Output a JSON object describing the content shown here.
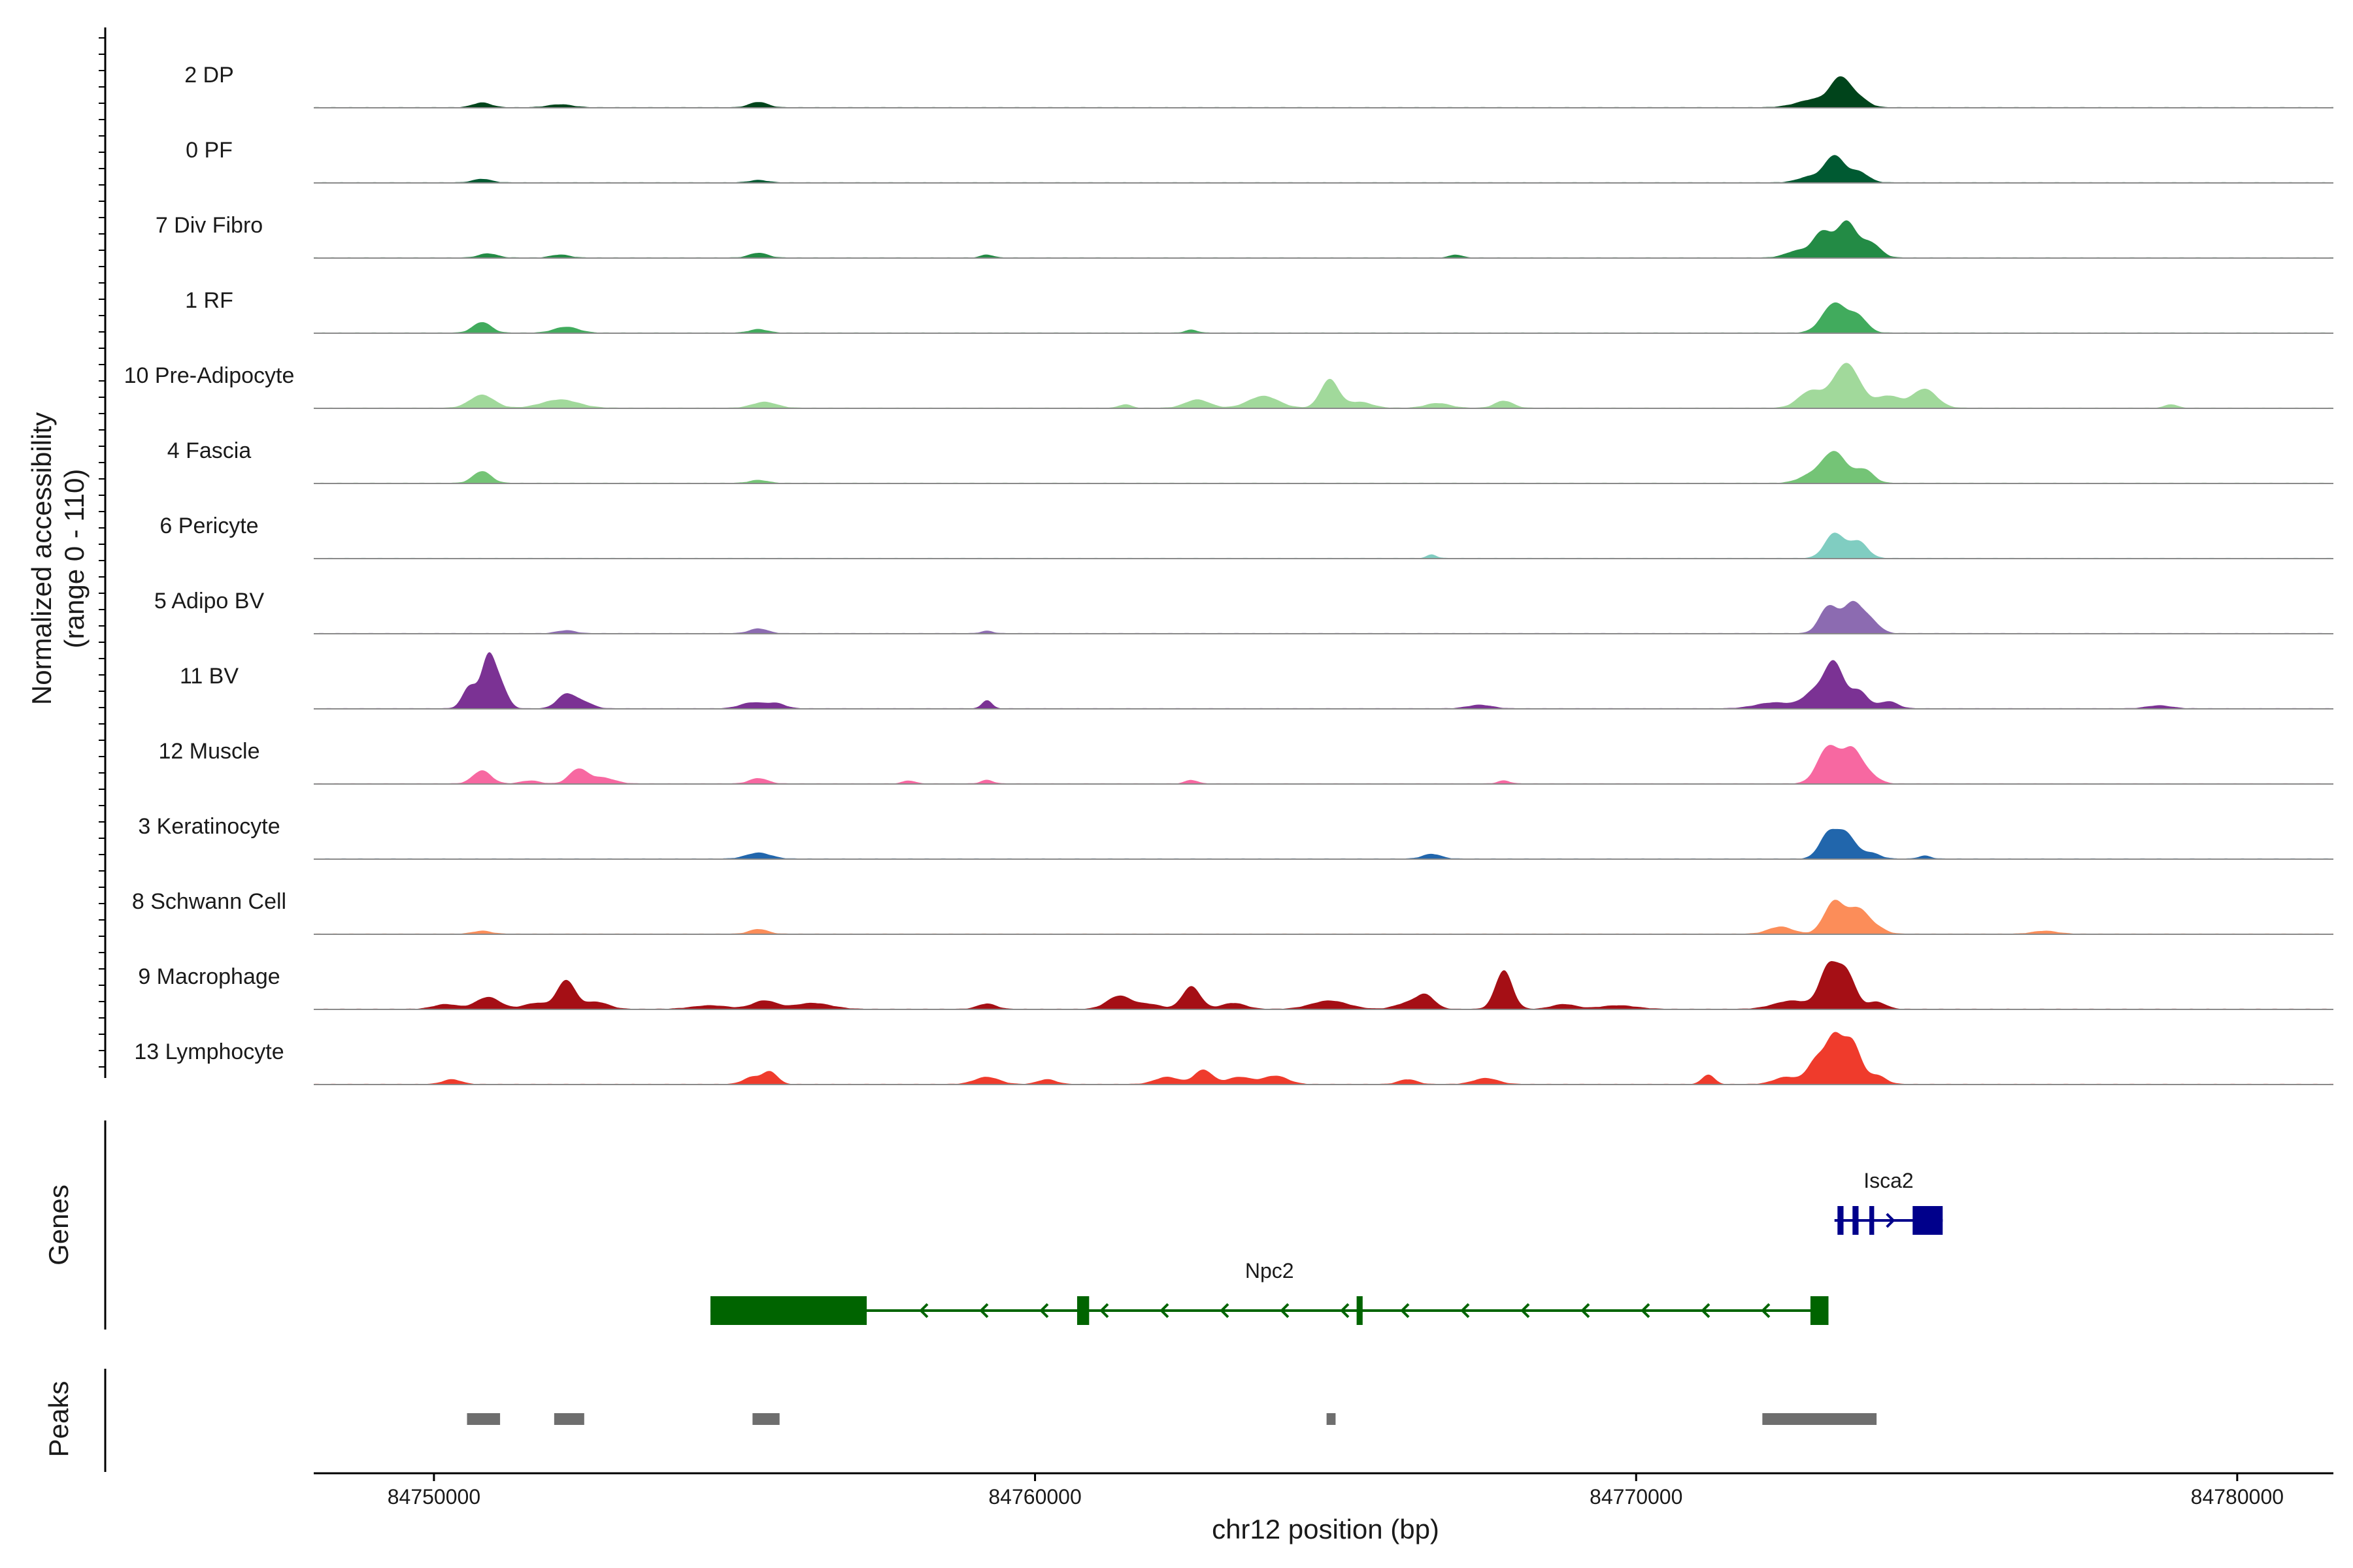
{
  "chart_data": {
    "type": "area",
    "chromosome": "chr12",
    "xlabel": "chr12 position (bp)",
    "xlim": [
      84748000,
      84781600
    ],
    "x_ticks": [
      84750000,
      84760000,
      84770000,
      84780000
    ],
    "x_tick_labels": [
      "84750000",
      "84760000",
      "84770000",
      "84780000"
    ],
    "ylabel": "Normalized accessibility",
    "ylabel_range": "(range 0 - 110)",
    "ylim": [
      0,
      110
    ],
    "panel_labels": {
      "genes": "Genes",
      "peaks": "Peaks"
    },
    "series": [
      {
        "name": "2 DP",
        "color": "#00441b",
        "peaks": [
          [
            84750800,
            8,
            150
          ],
          [
            84752100,
            5,
            200
          ],
          [
            84755400,
            9,
            150
          ],
          [
            84773000,
            14,
            300
          ],
          [
            84773400,
            44,
            160
          ],
          [
            84773700,
            15,
            160
          ]
        ]
      },
      {
        "name": "0 PF",
        "color": "#005a32",
        "peaks": [
          [
            84750800,
            6,
            150
          ],
          [
            84755400,
            4,
            150
          ],
          [
            84773300,
            44,
            160
          ],
          [
            84773700,
            18,
            160
          ],
          [
            84772900,
            10,
            200
          ]
        ]
      },
      {
        "name": "7 Div Fibro",
        "color": "#238b45",
        "peaks": [
          [
            84750900,
            7,
            150
          ],
          [
            84752100,
            5,
            150
          ],
          [
            84755400,
            8,
            150
          ],
          [
            84759200,
            5,
            100
          ],
          [
            84767000,
            5,
            100
          ],
          [
            84772700,
            12,
            200
          ],
          [
            84773100,
            42,
            150
          ],
          [
            84773500,
            60,
            160
          ],
          [
            84773900,
            25,
            160
          ]
        ]
      },
      {
        "name": "1 RF",
        "color": "#41ab5d",
        "peaks": [
          [
            84750800,
            18,
            150
          ],
          [
            84752200,
            10,
            200
          ],
          [
            84755400,
            6,
            150
          ],
          [
            84762600,
            5,
            100
          ],
          [
            84773300,
            50,
            200
          ],
          [
            84773700,
            25,
            150
          ]
        ]
      },
      {
        "name": "10 Pre-Adipocyte",
        "color": "#a1d99b",
        "peaks": [
          [
            84750800,
            22,
            200
          ],
          [
            84752100,
            14,
            300
          ],
          [
            84755500,
            10,
            200
          ],
          [
            84761500,
            6,
            100
          ],
          [
            84762700,
            14,
            200
          ],
          [
            84763800,
            20,
            250
          ],
          [
            84764900,
            48,
            150
          ],
          [
            84765400,
            10,
            200
          ],
          [
            84766700,
            8,
            200
          ],
          [
            84767800,
            12,
            150
          ],
          [
            84772900,
            28,
            200
          ],
          [
            84773500,
            75,
            220
          ],
          [
            84774200,
            20,
            200
          ],
          [
            84774800,
            32,
            200
          ],
          [
            84778900,
            6,
            100
          ]
        ]
      },
      {
        "name": "4 Fascia",
        "color": "#74c476",
        "peaks": [
          [
            84750800,
            20,
            150
          ],
          [
            84755400,
            5,
            150
          ],
          [
            84772900,
            12,
            200
          ],
          [
            84773300,
            52,
            200
          ],
          [
            84773800,
            22,
            150
          ]
        ]
      },
      {
        "name": "6 Pericyte",
        "color": "#80cdc1",
        "peaks": [
          [
            84766600,
            6,
            80
          ],
          [
            84773300,
            42,
            160
          ],
          [
            84773700,
            28,
            150
          ]
        ]
      },
      {
        "name": "5 Adipo BV",
        "color": "#8c6bb1",
        "peaks": [
          [
            84752200,
            5,
            150
          ],
          [
            84755400,
            8,
            150
          ],
          [
            84759200,
            4,
            100
          ],
          [
            84773200,
            45,
            150
          ],
          [
            84773600,
            50,
            160
          ],
          [
            84773900,
            20,
            150
          ]
        ]
      },
      {
        "name": "11 BV",
        "color": "#7b3294",
        "peaks": [
          [
            84750600,
            38,
            120
          ],
          [
            84750900,
            82,
            110
          ],
          [
            84751100,
            40,
            120
          ],
          [
            84752200,
            24,
            150
          ],
          [
            84752500,
            10,
            150
          ],
          [
            84755300,
            10,
            200
          ],
          [
            84755700,
            8,
            150
          ],
          [
            84759200,
            14,
            80
          ],
          [
            84767400,
            6,
            200
          ],
          [
            84772300,
            10,
            300
          ],
          [
            84773000,
            30,
            200
          ],
          [
            84773300,
            70,
            150
          ],
          [
            84773700,
            30,
            150
          ],
          [
            84774200,
            12,
            150
          ],
          [
            84778700,
            5,
            200
          ]
        ]
      },
      {
        "name": "12 Muscle",
        "color": "#f768a1",
        "peaks": [
          [
            84750800,
            22,
            150
          ],
          [
            84751600,
            5,
            150
          ],
          [
            84752400,
            24,
            150
          ],
          [
            84752800,
            10,
            200
          ],
          [
            84755400,
            9,
            150
          ],
          [
            84757900,
            5,
            100
          ],
          [
            84759200,
            6,
            100
          ],
          [
            84762600,
            6,
            100
          ],
          [
            84767800,
            5,
            100
          ],
          [
            84773200,
            62,
            180
          ],
          [
            84773600,
            55,
            160
          ],
          [
            84773900,
            12,
            150
          ]
        ]
      },
      {
        "name": "3 Keratinocyte",
        "color": "#2166ac",
        "peaks": [
          [
            84755400,
            10,
            200
          ],
          [
            84766600,
            8,
            150
          ],
          [
            84773200,
            42,
            150
          ],
          [
            84773500,
            40,
            150
          ],
          [
            84773900,
            10,
            150
          ],
          [
            84774800,
            5,
            100
          ]
        ]
      },
      {
        "name": "8 Schwann Cell",
        "color": "#fc8d59",
        "peaks": [
          [
            84750800,
            5,
            150
          ],
          [
            84755400,
            8,
            150
          ],
          [
            84772400,
            12,
            200
          ],
          [
            84773300,
            55,
            170
          ],
          [
            84773700,
            40,
            160
          ],
          [
            84774000,
            10,
            150
          ],
          [
            84776800,
            5,
            200
          ]
        ]
      },
      {
        "name": "9 Macrophage",
        "color": "#a50f15",
        "peaks": [
          [
            84750200,
            8,
            200
          ],
          [
            84750900,
            20,
            200
          ],
          [
            84751700,
            10,
            200
          ],
          [
            84752200,
            48,
            150
          ],
          [
            84752700,
            12,
            200
          ],
          [
            84754600,
            6,
            300
          ],
          [
            84755500,
            14,
            200
          ],
          [
            84756300,
            10,
            300
          ],
          [
            84759200,
            9,
            150
          ],
          [
            84761400,
            22,
            200
          ],
          [
            84761900,
            8,
            200
          ],
          [
            84762600,
            38,
            150
          ],
          [
            84763300,
            10,
            200
          ],
          [
            84764900,
            14,
            300
          ],
          [
            84766200,
            10,
            200
          ],
          [
            84766500,
            22,
            150
          ],
          [
            84767800,
            65,
            140
          ],
          [
            84768800,
            8,
            200
          ],
          [
            84769700,
            6,
            300
          ],
          [
            84772600,
            14,
            300
          ],
          [
            84773200,
            68,
            150
          ],
          [
            84773500,
            60,
            150
          ],
          [
            84774000,
            12,
            150
          ]
        ]
      },
      {
        "name": "13 Lymphocyte",
        "color": "#ef3b2c",
        "peaks": [
          [
            84750300,
            8,
            150
          ],
          [
            84755300,
            12,
            150
          ],
          [
            84755600,
            20,
            120
          ],
          [
            84759200,
            12,
            200
          ],
          [
            84760200,
            8,
            150
          ],
          [
            84762200,
            12,
            200
          ],
          [
            84762800,
            24,
            150
          ],
          [
            84763400,
            12,
            200
          ],
          [
            84764000,
            14,
            200
          ],
          [
            84766200,
            8,
            150
          ],
          [
            84767500,
            10,
            200
          ],
          [
            84771200,
            16,
            100
          ],
          [
            84772500,
            12,
            200
          ],
          [
            84773000,
            40,
            150
          ],
          [
            84773300,
            75,
            140
          ],
          [
            84773600,
            68,
            140
          ],
          [
            84774000,
            15,
            150
          ]
        ]
      }
    ],
    "genes": [
      {
        "name": "Isca2",
        "color": "#00008b",
        "strand": "+",
        "start": 84773300,
        "end": 84775100,
        "exons": [
          [
            84773350,
            84773450
          ],
          [
            84773600,
            84773700
          ],
          [
            84773880,
            84773960
          ],
          [
            84774600,
            84775100
          ]
        ]
      },
      {
        "name": "Npc2",
        "color": "#006400",
        "strand": "-",
        "start": 84754600,
        "end": 84773200,
        "exons": [
          [
            84754600,
            84757200
          ],
          [
            84760700,
            84760900
          ],
          [
            84765350,
            84765450
          ],
          [
            84772900,
            84773200
          ]
        ]
      }
    ],
    "peaks_track": [
      [
        84750550,
        84751100
      ],
      [
        84752000,
        84752500
      ],
      [
        84755300,
        84755750
      ],
      [
        84764850,
        84765000
      ],
      [
        84772100,
        84774000
      ]
    ],
    "peaks_color": "#6e6e6e"
  }
}
